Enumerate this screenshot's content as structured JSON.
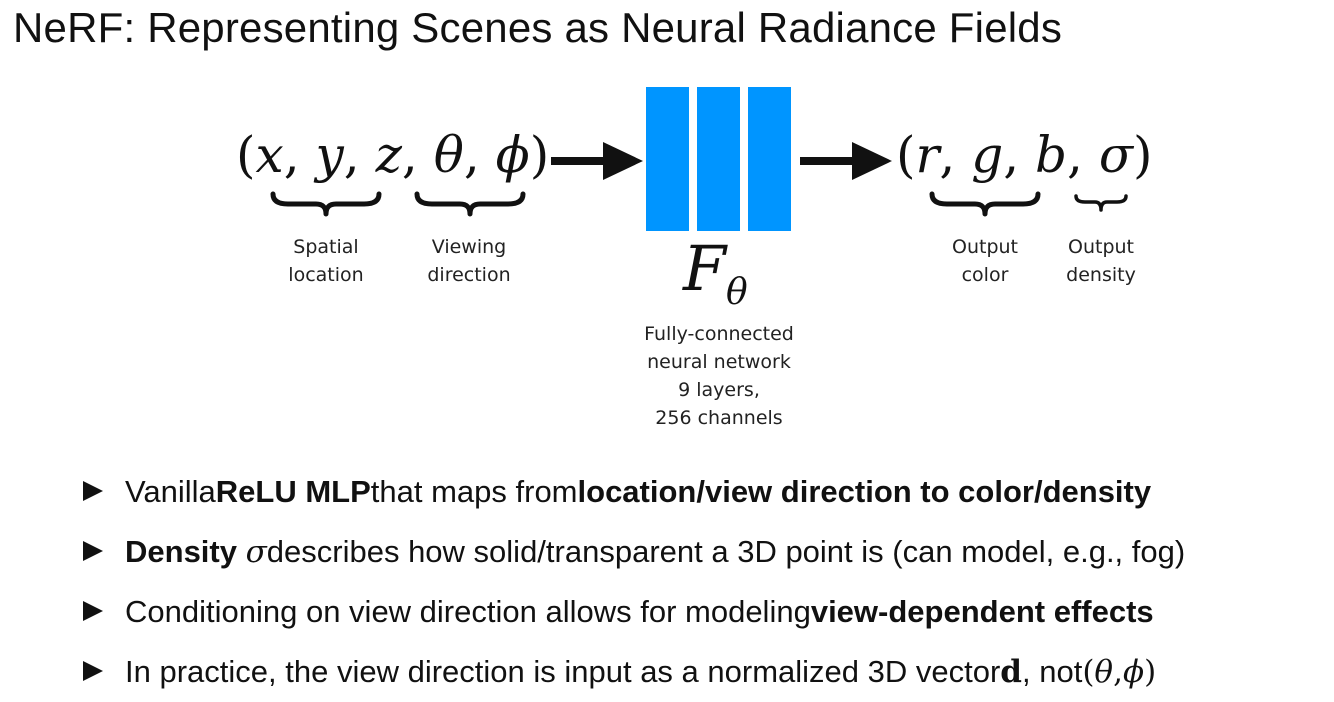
{
  "title": "NeRF: Representing Scenes as Neural Radiance Fields",
  "input_tuple": {
    "open": "(",
    "x": "x",
    "c1": ", ",
    "y": "y",
    "c2": ", ",
    "z": "z",
    "c3": ", ",
    "theta": "θ",
    "c4": ", ",
    "phi": "ϕ",
    "close": ")"
  },
  "output_tuple": {
    "open": "(",
    "r": "r",
    "c1": ", ",
    "g": "g",
    "c2": ", ",
    "b": "b",
    "c3": ", ",
    "sigma": "σ",
    "close": ")"
  },
  "network_symbol": {
    "main": "F",
    "sub": "θ"
  },
  "labels": {
    "spatial": [
      "Spatial",
      "location"
    ],
    "viewing": [
      "Viewing",
      "direction"
    ],
    "output_color": [
      "Output",
      "color"
    ],
    "output_density": [
      "Output",
      "density"
    ]
  },
  "network_label": [
    "Fully-connected",
    "neural network",
    "9 layers,",
    "256 channels"
  ],
  "bullets": [
    {
      "t1": "Vanilla ",
      "b1": "ReLU MLP",
      "t2": " that maps from ",
      "b2": "location/view direction to color/density"
    },
    {
      "b1": "Density",
      "sym": "σ",
      "t1": " describes how solid/transparent a 3D point is (can model, e.g., fog)"
    },
    {
      "t1": "Conditioning on view direction allows for modeling ",
      "b1": "view-dependent effects"
    },
    {
      "t1": "In practice, the view direction is input as a normalized 3D vector ",
      "vec": "d",
      "t2": ", not ",
      "p_open": "(",
      "theta": "θ",
      "comma": ", ",
      "phi": "ϕ",
      "p_close": ")"
    }
  ],
  "colors": {
    "network_blue": "#0095ff",
    "text": "#111111"
  }
}
